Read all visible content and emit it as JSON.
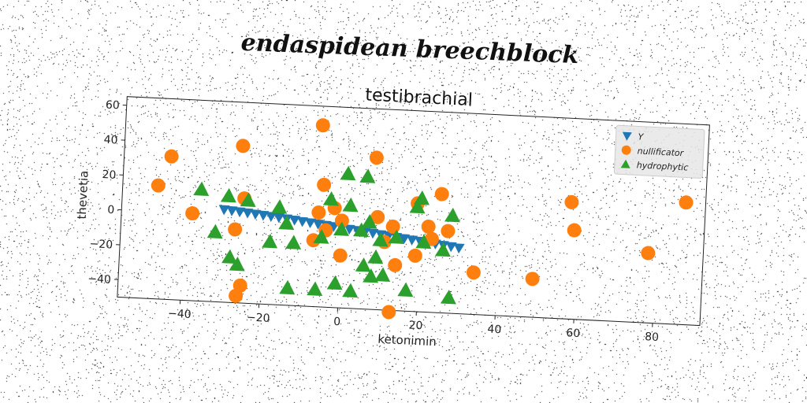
{
  "suptitle": "endaspidean breechblock",
  "chart_data": {
    "type": "scatter",
    "title": "testibrachial",
    "xlabel": "ketonimin",
    "ylabel": "thevetia",
    "xlim": [
      -56,
      92
    ],
    "ylim": [
      -50,
      65
    ],
    "xticks": [
      -40,
      -20,
      0,
      20,
      40,
      60,
      80
    ],
    "yticks": [
      -40,
      -20,
      0,
      20,
      40,
      60
    ],
    "grid": false,
    "legend": {
      "position": "top-right",
      "entries": [
        "Y",
        "nullificator",
        "hydrophytic"
      ]
    },
    "series": [
      {
        "name": "Y",
        "marker": "triangle-down",
        "color": "#1f77b4",
        "x": [
          -30,
          -28,
          -26,
          -24,
          -22,
          -20,
          -18,
          -16,
          -14,
          -12,
          -10,
          -8,
          -6,
          -4,
          -2,
          0,
          2,
          4,
          6,
          8,
          10,
          12,
          14,
          16,
          18,
          20,
          22,
          24,
          26,
          28,
          30
        ],
        "y": [
          3,
          2.6,
          2.2,
          1.8,
          1.3,
          0.9,
          0.4,
          0,
          -0.5,
          -1,
          -1.6,
          -2.1,
          -2.6,
          -3.1,
          -3.6,
          -4.2,
          -4.7,
          -5.2,
          -5.8,
          -6.3,
          -6.9,
          -7.4,
          -8,
          -8.5,
          -9.1,
          -9.6,
          -10.2,
          -10.7,
          -11.3,
          -11.8,
          -12.4
        ]
      },
      {
        "name": "nullificator",
        "marker": "circle",
        "color": "#ff7f0e",
        "x": [
          -47,
          -44,
          -38,
          -26,
          -25,
          -27,
          -25,
          -26,
          -6,
          -5,
          -6,
          -4,
          -7,
          -2,
          0,
          0,
          8,
          9,
          13,
          14,
          11,
          13,
          19,
          19,
          23,
          22,
          25,
          27,
          34,
          49,
          58,
          59,
          78,
          87
        ],
        "y": [
          15,
          32,
          0,
          40,
          10,
          -8,
          -40,
          -46,
          54,
          20,
          4,
          -6,
          -12,
          7,
          0,
          -20,
          37,
          3,
          -2,
          -24,
          -11,
          -51,
          12,
          -18,
          -8,
          -1,
          18,
          -3,
          -26,
          -28,
          17,
          1,
          -10,
          20
        ]
      },
      {
        "name": "hydrophytic",
        "marker": "triangle-up",
        "color": "#2ca02c",
        "x": [
          -36,
          -32,
          -29,
          -28,
          -26,
          -24,
          -18,
          -16,
          -14,
          -13,
          -12,
          -6,
          -5,
          -3,
          -1,
          0,
          1,
          2,
          3,
          5,
          6,
          6,
          7,
          8,
          9,
          10,
          11,
          14,
          17,
          19,
          20,
          21,
          26,
          28,
          28
        ],
        "y": [
          14,
          -10,
          11,
          -24,
          -28,
          9,
          -14,
          6,
          -3,
          -40,
          -14,
          -40,
          -10,
          12,
          -36,
          -5,
          27,
          9,
          -40,
          -5,
          26,
          -25,
          0,
          -31,
          -20,
          -10,
          -30,
          -8,
          -38,
          10,
          15,
          -10,
          -14,
          6,
          -41
        ]
      }
    ]
  }
}
